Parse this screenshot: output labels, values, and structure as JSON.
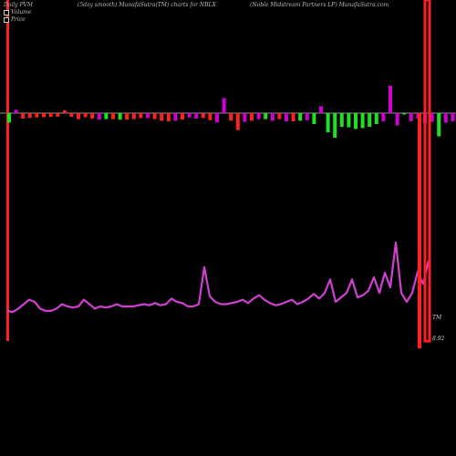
{
  "header": {
    "left": "Daily PVM",
    "center": "(5day smooth) MunafaSutra(TM) charts for NBLX",
    "right": "(Noble  Midstream Partners LP) MunafaSutra.com"
  },
  "legend": {
    "items": [
      "Volume",
      "Price"
    ]
  },
  "labels": {
    "tm": "TM",
    "last_price": "8.92"
  },
  "colors": {
    "background": "#000000",
    "up_bar": "#d000d0",
    "down_bar": "#ff2020",
    "green_bar": "#20e020",
    "price_line": "#d040d0",
    "marker": "#ff2020",
    "zero_line": "#c0c0c0"
  },
  "chart_data": {
    "type": "bar",
    "bars": [
      {
        "v": -0.35,
        "c": "green"
      },
      {
        "v": 0.12,
        "c": "up"
      },
      {
        "v": -0.2,
        "c": "down"
      },
      {
        "v": -0.18,
        "c": "down"
      },
      {
        "v": -0.16,
        "c": "down"
      },
      {
        "v": -0.15,
        "c": "down"
      },
      {
        "v": -0.14,
        "c": "down"
      },
      {
        "v": -0.13,
        "c": "down"
      },
      {
        "v": 0.1,
        "c": "down"
      },
      {
        "v": -0.14,
        "c": "down"
      },
      {
        "v": -0.22,
        "c": "down"
      },
      {
        "v": -0.15,
        "c": "down"
      },
      {
        "v": -0.2,
        "c": "down"
      },
      {
        "v": -0.24,
        "c": "up"
      },
      {
        "v": -0.22,
        "c": "green"
      },
      {
        "v": -0.22,
        "c": "down"
      },
      {
        "v": -0.24,
        "c": "green"
      },
      {
        "v": -0.24,
        "c": "down"
      },
      {
        "v": -0.22,
        "c": "down"
      },
      {
        "v": -0.18,
        "c": "down"
      },
      {
        "v": -0.18,
        "c": "up"
      },
      {
        "v": -0.22,
        "c": "down"
      },
      {
        "v": -0.28,
        "c": "down"
      },
      {
        "v": -0.3,
        "c": "down"
      },
      {
        "v": -0.28,
        "c": "up"
      },
      {
        "v": -0.24,
        "c": "down"
      },
      {
        "v": -0.16,
        "c": "up"
      },
      {
        "v": -0.2,
        "c": "up"
      },
      {
        "v": -0.18,
        "c": "down"
      },
      {
        "v": -0.26,
        "c": "down"
      },
      {
        "v": -0.34,
        "c": "up"
      },
      {
        "v": 0.55,
        "c": "up"
      },
      {
        "v": -0.28,
        "c": "down"
      },
      {
        "v": -0.62,
        "c": "down"
      },
      {
        "v": -0.32,
        "c": "up"
      },
      {
        "v": -0.28,
        "c": "down"
      },
      {
        "v": -0.22,
        "c": "up"
      },
      {
        "v": -0.22,
        "c": "green"
      },
      {
        "v": -0.28,
        "c": "up"
      },
      {
        "v": -0.22,
        "c": "down"
      },
      {
        "v": -0.3,
        "c": "up"
      },
      {
        "v": -0.3,
        "c": "down"
      },
      {
        "v": -0.28,
        "c": "green"
      },
      {
        "v": -0.26,
        "c": "up"
      },
      {
        "v": -0.4,
        "c": "green"
      },
      {
        "v": 0.25,
        "c": "up"
      },
      {
        "v": -0.7,
        "c": "green"
      },
      {
        "v": -0.9,
        "c": "green"
      },
      {
        "v": -0.5,
        "c": "green"
      },
      {
        "v": -0.52,
        "c": "green"
      },
      {
        "v": -0.58,
        "c": "green"
      },
      {
        "v": -0.55,
        "c": "green"
      },
      {
        "v": -0.5,
        "c": "green"
      },
      {
        "v": -0.4,
        "c": "green"
      },
      {
        "v": -0.3,
        "c": "up"
      },
      {
        "v": 1.0,
        "c": "up"
      },
      {
        "v": -0.45,
        "c": "up"
      },
      {
        "v": -0.05,
        "c": "green"
      },
      {
        "v": -0.3,
        "c": "up"
      },
      {
        "v": -0.2,
        "c": "up"
      },
      {
        "v": -0.38,
        "c": "up"
      },
      {
        "v": -0.32,
        "c": "up"
      },
      {
        "v": -0.85,
        "c": "green"
      },
      {
        "v": -0.35,
        "c": "up"
      },
      {
        "v": -0.3,
        "c": "up"
      }
    ],
    "price": [
      4.4,
      4.3,
      4.6,
      5.0,
      5.4,
      5.2,
      4.6,
      4.4,
      4.4,
      4.6,
      5.0,
      4.8,
      4.7,
      4.8,
      5.4,
      5.0,
      4.6,
      4.8,
      4.7,
      4.8,
      5.0,
      4.8,
      4.8,
      4.8,
      4.9,
      5.0,
      4.9,
      5.1,
      4.9,
      5.0,
      5.5,
      5.2,
      5.1,
      4.8,
      4.8,
      5.0,
      8.3,
      5.7,
      5.2,
      5.0,
      5.0,
      5.1,
      5.2,
      5.4,
      5.1,
      5.5,
      5.8,
      5.4,
      5.1,
      4.9,
      5.0,
      5.2,
      5.4,
      5.0,
      5.2,
      5.5,
      5.9,
      5.5,
      6.0,
      7.2,
      5.2,
      5.6,
      6.0,
      7.2,
      5.6,
      5.8,
      6.2,
      7.4,
      6.0,
      7.8,
      6.5,
      10.5,
      6.0,
      5.2,
      6.0,
      7.9,
      6.8,
      8.92
    ]
  }
}
